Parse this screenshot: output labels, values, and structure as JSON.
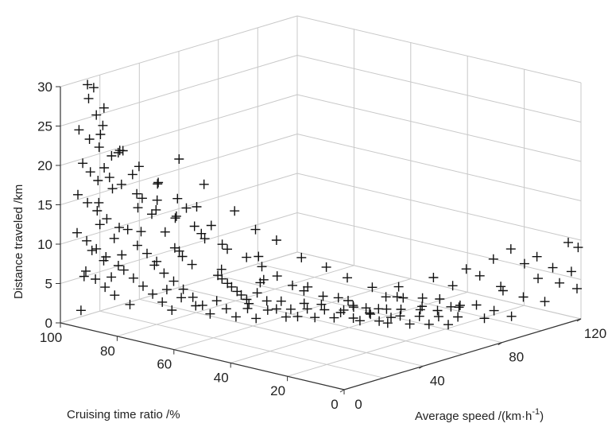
{
  "chart_data": {
    "type": "scatter",
    "projection": "3d",
    "marker": "plus",
    "marker_color": "#111111",
    "grid": true,
    "title": "",
    "xlabel": "Cruising time ratio /%",
    "ylabel": "Average speed /(km·h",
    "ylabel_superscript": "-1",
    "ylabel_suffix": ")",
    "zlabel": "Distance traveled /km",
    "xlim": [
      0,
      100
    ],
    "ylim": [
      0,
      120
    ],
    "zlim": [
      0,
      30
    ],
    "xticks": [
      "0",
      "20",
      "40",
      "60",
      "80",
      "100"
    ],
    "yticks": [
      "0",
      "40",
      "80",
      "120"
    ],
    "zticks": [
      "0",
      "5",
      "10",
      "15",
      "20",
      "25",
      "30"
    ],
    "points": [
      [
        96,
        8,
        30
      ],
      [
        97,
        10,
        28
      ],
      [
        93,
        12,
        27
      ],
      [
        98,
        14,
        29
      ],
      [
        95,
        11,
        26
      ],
      [
        92,
        10,
        25
      ],
      [
        99,
        8,
        24
      ],
      [
        96,
        9,
        23
      ],
      [
        94,
        11,
        22
      ],
      [
        91,
        13,
        21
      ],
      [
        97,
        7,
        20
      ],
      [
        95,
        8,
        19
      ],
      [
        93,
        9,
        18
      ],
      [
        90,
        12,
        17
      ],
      [
        98,
        6,
        16
      ],
      [
        96,
        8,
        15
      ],
      [
        94,
        10,
        14
      ],
      [
        92,
        12,
        13
      ],
      [
        89,
        14,
        12
      ],
      [
        99,
        7,
        11
      ],
      [
        97,
        9,
        10
      ],
      [
        95,
        11,
        9
      ],
      [
        93,
        13,
        8
      ],
      [
        90,
        15,
        7
      ],
      [
        98,
        10,
        6
      ],
      [
        96,
        12,
        5
      ],
      [
        94,
        14,
        4
      ],
      [
        92,
        16,
        3
      ],
      [
        88,
        18,
        2
      ],
      [
        99,
        9,
        1
      ],
      [
        87,
        13,
        22
      ],
      [
        85,
        15,
        19
      ],
      [
        83,
        17,
        16
      ],
      [
        81,
        19,
        14
      ],
      [
        86,
        14,
        12
      ],
      [
        84,
        16,
        10
      ],
      [
        82,
        18,
        9
      ],
      [
        80,
        20,
        8
      ],
      [
        86,
        12,
        7
      ],
      [
        84,
        14,
        6
      ],
      [
        82,
        16,
        5
      ],
      [
        80,
        18,
        4
      ],
      [
        78,
        20,
        3
      ],
      [
        76,
        22,
        2
      ],
      [
        88,
        10,
        11
      ],
      [
        86,
        11,
        9
      ],
      [
        91,
        9,
        8
      ],
      [
        89,
        10,
        6
      ],
      [
        77,
        20,
        12
      ],
      [
        75,
        22,
        10
      ],
      [
        73,
        23,
        9
      ],
      [
        71,
        25,
        8
      ],
      [
        76,
        18,
        7
      ],
      [
        74,
        20,
        6
      ],
      [
        72,
        22,
        5
      ],
      [
        70,
        24,
        4
      ],
      [
        68,
        26,
        3
      ],
      [
        66,
        27,
        2
      ],
      [
        78,
        16,
        8
      ],
      [
        75,
        18,
        5
      ],
      [
        72,
        21,
        4
      ],
      [
        69,
        24,
        3
      ],
      [
        79,
        19,
        18
      ],
      [
        73,
        25,
        15
      ],
      [
        67,
        29,
        13
      ],
      [
        70,
        30,
        11
      ],
      [
        64,
        28,
        7
      ],
      [
        62,
        30,
        6
      ],
      [
        60,
        32,
        5
      ],
      [
        58,
        34,
        4
      ],
      [
        63,
        26,
        4
      ],
      [
        61,
        28,
        3
      ],
      [
        59,
        30,
        2
      ],
      [
        57,
        33,
        3
      ],
      [
        66,
        33,
        6
      ],
      [
        64,
        35,
        5
      ],
      [
        62,
        37,
        4
      ],
      [
        60,
        38,
        3
      ],
      [
        55,
        35,
        5
      ],
      [
        53,
        37,
        4
      ],
      [
        51,
        39,
        3
      ],
      [
        49,
        41,
        2
      ],
      [
        54,
        33,
        2
      ],
      [
        52,
        36,
        3
      ],
      [
        50,
        40,
        4
      ],
      [
        48,
        42,
        3
      ],
      [
        56,
        38,
        6
      ],
      [
        47,
        44,
        2
      ],
      [
        45,
        46,
        3
      ],
      [
        43,
        47,
        2
      ],
      [
        41,
        49,
        3
      ],
      [
        39,
        51,
        2
      ],
      [
        37,
        53,
        3
      ],
      [
        35,
        55,
        2
      ],
      [
        44,
        43,
        4
      ],
      [
        40,
        46,
        4
      ],
      [
        36,
        50,
        3
      ],
      [
        32,
        54,
        2
      ],
      [
        30,
        56,
        3
      ],
      [
        28,
        58,
        2
      ],
      [
        33,
        52,
        4
      ],
      [
        29,
        55,
        3
      ],
      [
        25,
        58,
        2
      ],
      [
        22,
        60,
        3
      ],
      [
        20,
        62,
        2
      ],
      [
        18,
        64,
        3
      ],
      [
        24,
        56,
        4
      ],
      [
        21,
        59,
        4
      ],
      [
        16,
        66,
        2
      ],
      [
        14,
        68,
        3
      ],
      [
        12,
        70,
        2
      ],
      [
        10,
        72,
        3
      ],
      [
        17,
        63,
        4
      ],
      [
        13,
        66,
        4
      ],
      [
        27,
        60,
        5
      ],
      [
        23,
        63,
        5
      ],
      [
        19,
        67,
        5
      ],
      [
        15,
        70,
        5
      ],
      [
        11,
        74,
        4
      ],
      [
        26,
        65,
        6
      ],
      [
        20,
        74,
        7
      ],
      [
        14,
        82,
        8
      ],
      [
        10,
        90,
        9
      ],
      [
        8,
        96,
        10
      ],
      [
        16,
        78,
        6
      ],
      [
        12,
        86,
        7
      ],
      [
        6,
        100,
        8
      ],
      [
        4,
        104,
        6
      ],
      [
        8,
        92,
        5
      ],
      [
        5,
        98,
        4
      ],
      [
        3,
        110,
        7
      ],
      [
        2,
        112,
        5
      ],
      [
        9,
        80,
        4
      ],
      [
        7,
        86,
        3
      ],
      [
        5,
        92,
        2
      ],
      [
        3,
        106,
        3
      ],
      [
        6,
        88,
        6
      ],
      [
        2,
        118,
        6
      ],
      [
        1,
        120,
        9
      ],
      [
        0,
        118,
        4
      ],
      [
        1,
        115,
        10
      ],
      [
        3,
        102,
        9
      ],
      [
        12,
        76,
        4
      ],
      [
        9,
        84,
        2
      ],
      [
        32,
        48,
        5
      ],
      [
        42,
        40,
        6
      ],
      [
        52,
        34,
        7
      ],
      [
        62,
        27,
        8
      ],
      [
        72,
        20,
        10
      ],
      [
        82,
        15,
        12
      ],
      [
        88,
        22,
        14
      ],
      [
        84,
        26,
        15
      ],
      [
        80,
        30,
        13
      ],
      [
        74,
        34,
        11
      ],
      [
        68,
        36,
        10
      ],
      [
        58,
        40,
        9
      ],
      [
        95,
        15,
        19
      ],
      [
        91,
        18,
        17
      ],
      [
        87,
        20,
        16
      ],
      [
        83,
        24,
        14
      ],
      [
        79,
        28,
        13
      ],
      [
        75,
        32,
        12
      ],
      [
        97,
        16,
        23
      ],
      [
        93,
        20,
        21
      ],
      [
        89,
        24,
        19
      ],
      [
        85,
        28,
        17
      ],
      [
        81,
        32,
        15
      ],
      [
        77,
        36,
        14
      ],
      [
        69,
        40,
        9
      ],
      [
        65,
        44,
        8
      ],
      [
        61,
        46,
        7
      ],
      [
        57,
        48,
        6
      ],
      [
        53,
        50,
        5
      ],
      [
        49,
        52,
        5
      ],
      [
        45,
        54,
        4
      ],
      [
        41,
        56,
        4
      ],
      [
        37,
        58,
        3
      ],
      [
        34,
        60,
        3
      ],
      [
        31,
        62,
        3
      ],
      [
        28,
        64,
        2
      ],
      [
        100,
        12,
        5
      ],
      [
        100,
        16,
        8
      ],
      [
        100,
        20,
        11
      ],
      [
        99,
        18,
        14
      ],
      [
        98,
        22,
        17
      ],
      [
        97,
        25,
        20
      ],
      [
        86,
        40,
        19
      ],
      [
        80,
        44,
        16
      ],
      [
        72,
        48,
        13
      ],
      [
        66,
        50,
        11
      ],
      [
        60,
        52,
        10
      ],
      [
        54,
        56,
        8
      ],
      [
        48,
        60,
        7
      ],
      [
        42,
        62,
        6
      ],
      [
        36,
        66,
        5
      ],
      [
        30,
        70,
        4
      ],
      [
        24,
        74,
        3
      ],
      [
        18,
        80,
        3
      ]
    ]
  }
}
